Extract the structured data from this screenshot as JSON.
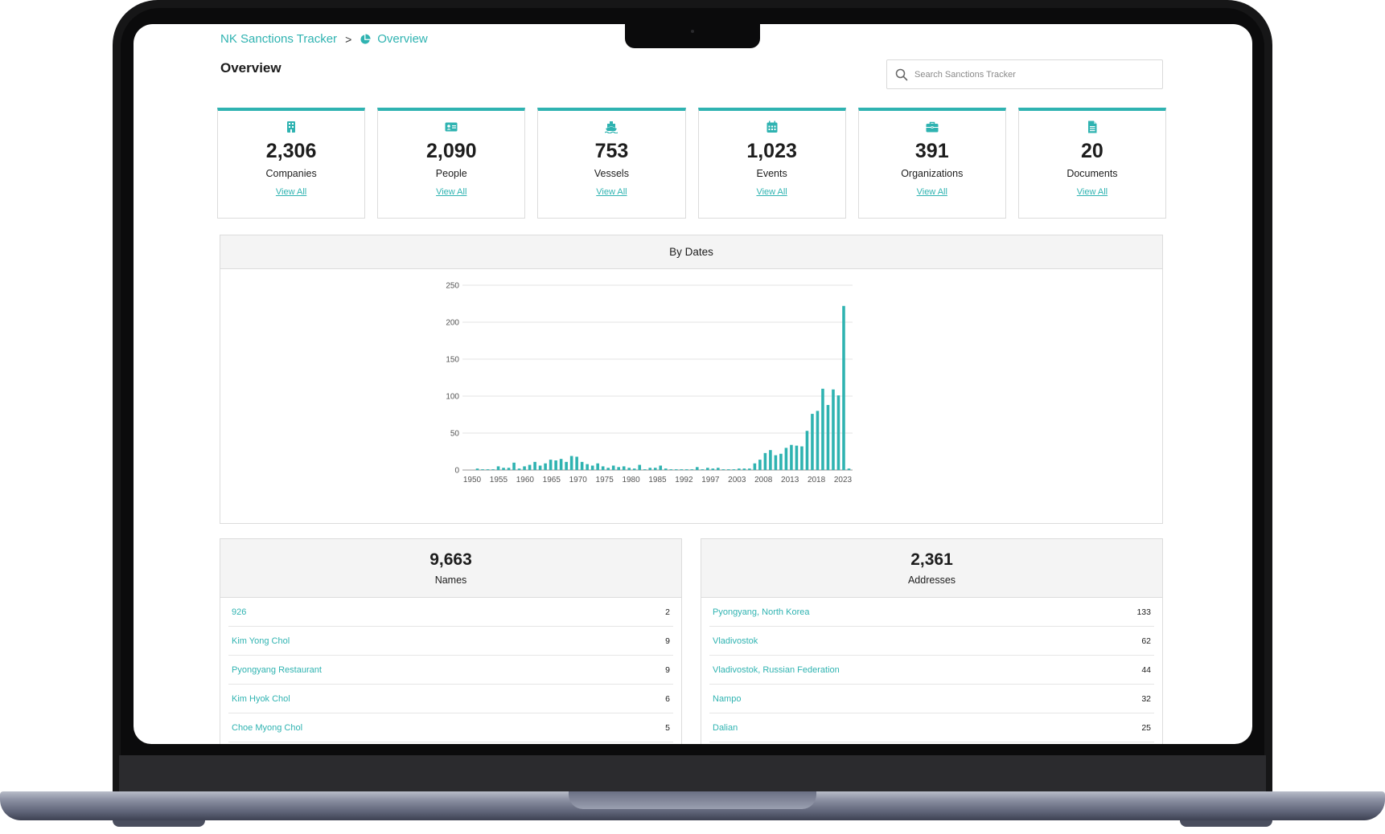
{
  "breadcrumb": {
    "root": "NK Sanctions Tracker",
    "separator": ">",
    "current": "Overview"
  },
  "page_title": "Overview",
  "search": {
    "placeholder": "Search Sanctions Tracker"
  },
  "accent_color": "#2fb3b1",
  "stats": [
    {
      "icon": "building-icon",
      "value": "2,306",
      "label": "Companies",
      "link": "View All"
    },
    {
      "icon": "id-card-icon",
      "value": "2,090",
      "label": "People",
      "link": "View All"
    },
    {
      "icon": "ship-icon",
      "value": "753",
      "label": "Vessels",
      "link": "View All"
    },
    {
      "icon": "calendar-icon",
      "value": "1,023",
      "label": "Events",
      "link": "View All"
    },
    {
      "icon": "briefcase-icon",
      "value": "391",
      "label": "Organizations",
      "link": "View All"
    },
    {
      "icon": "document-icon",
      "value": "20",
      "label": "Documents",
      "link": "View All"
    }
  ],
  "chart_data": {
    "type": "bar",
    "title": "By Dates",
    "xlabel": "",
    "ylabel": "",
    "ylim": [
      0,
      250
    ],
    "yticks": [
      0,
      50,
      100,
      150,
      200,
      250
    ],
    "xtick_labels": [
      "1950",
      "1955",
      "1960",
      "1965",
      "1970",
      "1975",
      "1980",
      "1985",
      "1992",
      "1997",
      "2003",
      "2008",
      "2013",
      "2018",
      "2023"
    ],
    "values": [
      0,
      2,
      1,
      1,
      1,
      5,
      3,
      3,
      10,
      2,
      5,
      7,
      11,
      6,
      9,
      14,
      13,
      15,
      11,
      19,
      18,
      11,
      8,
      6,
      9,
      5,
      3,
      6,
      4,
      5,
      3,
      2,
      7,
      1,
      3,
      3,
      6,
      2,
      1,
      1,
      1,
      1,
      1,
      4,
      1,
      3,
      2,
      3,
      1,
      1,
      1,
      2,
      2,
      2,
      9,
      14,
      23,
      27,
      20,
      22,
      30,
      34,
      33,
      32,
      53,
      76,
      80,
      110,
      88,
      109,
      101,
      222,
      2
    ],
    "grid": true,
    "bar_color": "#2fb3b1"
  },
  "names": {
    "count": "9,663",
    "title": "Names",
    "rows": [
      {
        "name": "926",
        "value": "2"
      },
      {
        "name": "Kim Yong Chol",
        "value": "9"
      },
      {
        "name": "Pyongyang Restaurant",
        "value": "9"
      },
      {
        "name": "Kim Hyok Chol",
        "value": "6"
      },
      {
        "name": "Choe Myong Chol",
        "value": "5"
      }
    ]
  },
  "addresses": {
    "count": "2,361",
    "title": "Addresses",
    "rows": [
      {
        "name": "Pyongyang, North Korea",
        "value": "133"
      },
      {
        "name": "Vladivostok",
        "value": "62"
      },
      {
        "name": "Vladivostok, Russian Federation",
        "value": "44"
      },
      {
        "name": "Nampo",
        "value": "32"
      },
      {
        "name": "Dalian",
        "value": "25"
      }
    ]
  }
}
